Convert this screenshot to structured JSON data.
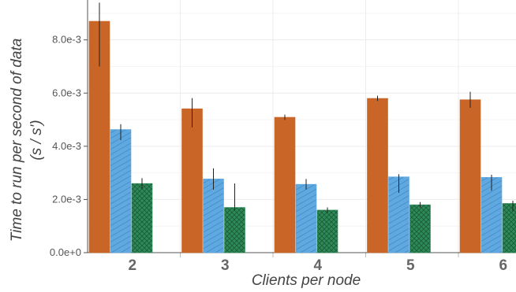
{
  "chart_data": {
    "type": "bar",
    "categories": [
      "2",
      "3",
      "4",
      "5",
      "6"
    ],
    "xlabel": "Clients per node",
    "ylabel_lines": [
      "Time to run per second of data",
      "(s / s')"
    ],
    "ylim": [
      0,
      0.0095
    ],
    "yticks": [
      0,
      0.002,
      0.004,
      0.006,
      0.008
    ],
    "ytick_labels": [
      "0.0e+0",
      "2.0e-3",
      "4.0e-3",
      "6.0e-3",
      "8.0e-3"
    ],
    "grid": true,
    "legend": "none",
    "series": [
      {
        "color": "#c96627",
        "pattern": "solid",
        "values": [
          0.0087,
          0.00541,
          0.00509,
          0.0058,
          0.00575
        ],
        "err_low": [
          0.0017,
          0.0007,
          0.0001,
          0.0001,
          0.0003
        ],
        "err_high": [
          0.0007,
          0.0004,
          0.0001,
          0.0001,
          0.0003
        ]
      },
      {
        "color": "#5fa8e0",
        "pattern": "diagonal-hatch",
        "values": [
          0.00463,
          0.00277,
          0.00257,
          0.00285,
          0.00283
        ],
        "err_low": [
          0.0004,
          0.0004,
          0.0002,
          0.0006,
          0.0005
        ],
        "err_high": [
          0.0002,
          0.0004,
          0.0002,
          0.0001,
          0.0001
        ]
      },
      {
        "color": "#2e8a58",
        "pattern": "cross-hatch",
        "values": [
          0.0026,
          0.0017,
          0.0016,
          0.0018,
          0.00185
        ],
        "err_low": [
          0.0002,
          0.0001,
          0.0001,
          0.0001,
          0.0003
        ],
        "err_high": [
          0.0002,
          0.0009,
          0.0001,
          0.0001,
          0.0001
        ]
      }
    ]
  }
}
